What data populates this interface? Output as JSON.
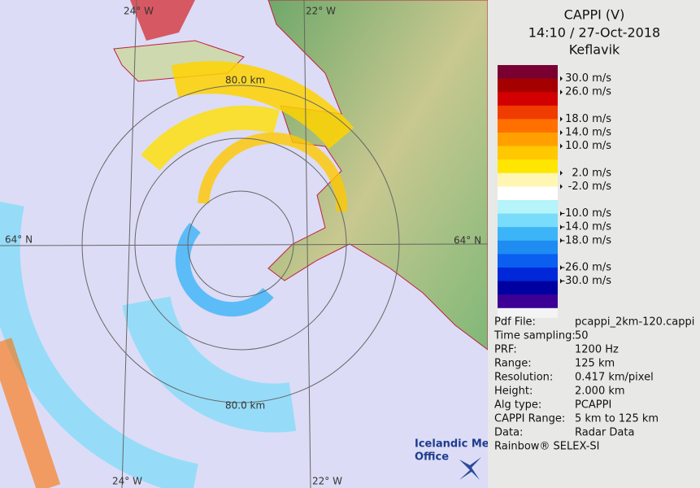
{
  "header": {
    "title": "CAPPI (V)",
    "datetime": "14:10 / 27-Oct-2018",
    "station": "Keflavik"
  },
  "legend": {
    "bands": [
      "#7a0032",
      "#a40000",
      "#d20000",
      "#f03c00",
      "#ff7000",
      "#ffa000",
      "#ffc800",
      "#ffe600",
      "#fff6b4",
      "#ffffff",
      "#b4f4fa",
      "#78dcfa",
      "#3cb4f8",
      "#1e8cf0",
      "#0a5ef0",
      "#0028d8",
      "#0000a0",
      "#3c0096"
    ],
    "labels": [
      "30.0 m/s",
      "26.0 m/s",
      "18.0 m/s",
      "14.0 m/s",
      "10.0 m/s",
      "2.0 m/s",
      "-2.0 m/s",
      "-10.0 m/s",
      "-14.0 m/s",
      "-18.0 m/s",
      "-26.0 m/s",
      "-30.0 m/s"
    ]
  },
  "info": [
    [
      "Pdf File:",
      "pcappi_2km-120.cappi"
    ],
    [
      "Time sampling:",
      "50"
    ],
    [
      "PRF:",
      "1200 Hz"
    ],
    [
      "Range:",
      "125 km"
    ],
    [
      "Resolution:",
      "0.417 km/pixel"
    ],
    [
      "Height:",
      "2.000 km"
    ],
    [
      "Alg type:",
      "PCAPPI"
    ],
    [
      "CAPPI Range:",
      "5 km to 125 km"
    ],
    [
      "Data:",
      "Radar Data"
    ]
  ],
  "footer": "Rainbow® SELEX-SI",
  "map": {
    "lon_top_left": "24° W",
    "lon_top_right": "22° W",
    "lon_bottom_left": "24° W",
    "lon_bottom_right": "22° W",
    "lat_left": "64° N",
    "lat_right": "64° N",
    "ring_top": "80.0 km",
    "ring_bottom": "80.0 km"
  },
  "logo": [
    "Icelandic Met",
    "Office"
  ]
}
